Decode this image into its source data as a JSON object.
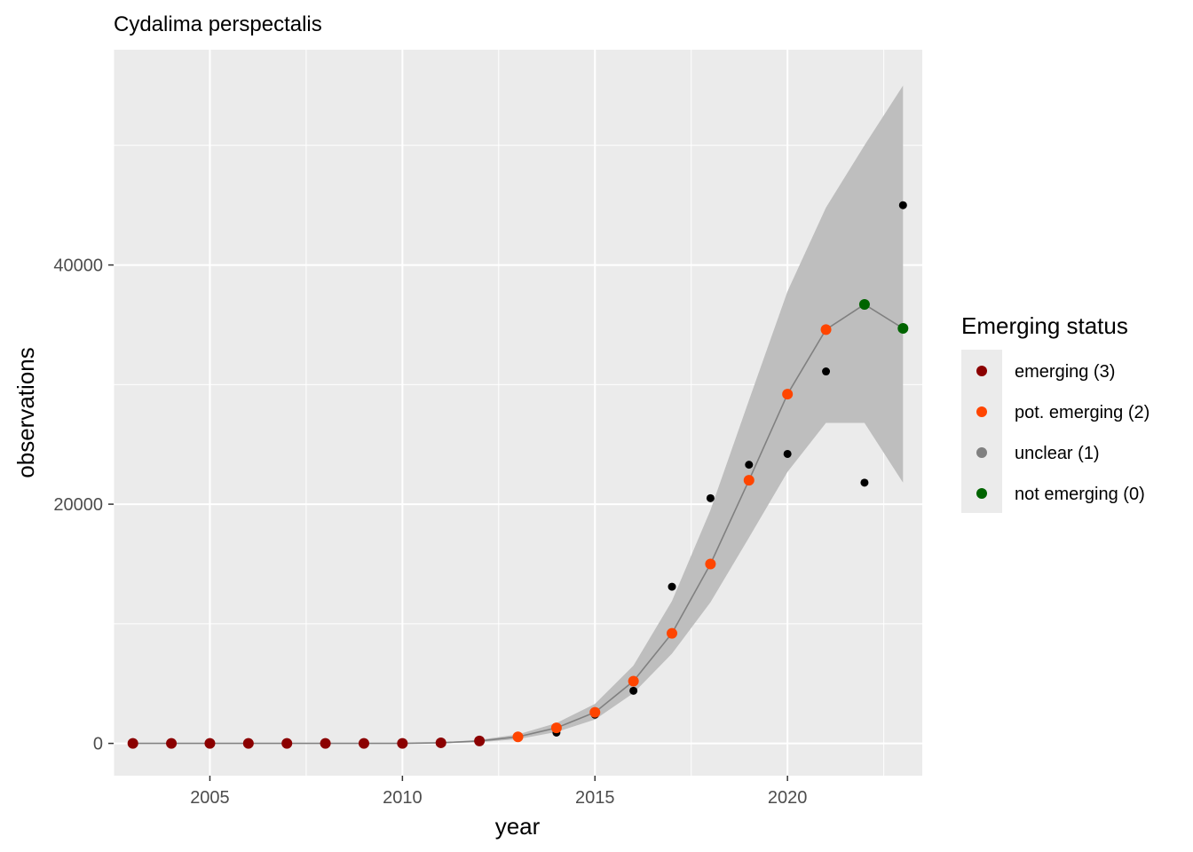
{
  "chart_data": {
    "type": "scatter",
    "title": "Cydalima perspectalis",
    "xlabel": "year",
    "ylabel": "observations",
    "xlim": [
      2002.5,
      2023.5
    ],
    "ylim": [
      -2700,
      58000
    ],
    "x_ticks": [
      2005,
      2010,
      2015,
      2020
    ],
    "x_tick_labels": [
      "2005",
      "2010",
      "2015",
      "2020"
    ],
    "y_ticks": [
      0,
      20000,
      40000
    ],
    "y_tick_labels": [
      "0",
      "20000",
      "40000"
    ],
    "grid": true,
    "legend": {
      "title": "Emerging status",
      "placement": "right",
      "entries": [
        {
          "label": "emerging (3)",
          "color": "#8B0000"
        },
        {
          "label": "pot. emerging (2)",
          "color": "#FF4500"
        },
        {
          "label": "unclear (1)",
          "color": "#808080"
        },
        {
          "label": "not emerging (0)",
          "color": "#006400"
        }
      ]
    },
    "observed": {
      "color": "#000000",
      "x": [
        2003,
        2004,
        2005,
        2006,
        2007,
        2008,
        2009,
        2010,
        2011,
        2012,
        2013,
        2014,
        2015,
        2016,
        2017,
        2018,
        2019,
        2020,
        2021,
        2022,
        2023
      ],
      "y": [
        0,
        0,
        0,
        0,
        0,
        0,
        0,
        0,
        50,
        250,
        500,
        900,
        2400,
        4400,
        13100,
        20500,
        23300,
        24200,
        31100,
        21800,
        45000
      ]
    },
    "fitted": {
      "x": [
        2003,
        2004,
        2005,
        2006,
        2007,
        2008,
        2009,
        2010,
        2011,
        2012,
        2013,
        2014,
        2015,
        2016,
        2017,
        2018,
        2019,
        2020,
        2021,
        2022,
        2023
      ],
      "y": [
        0,
        0,
        0,
        0,
        0,
        0,
        0,
        0,
        50,
        200,
        550,
        1300,
        2600,
        5200,
        9200,
        15000,
        22000,
        29200,
        34600,
        36700,
        34700
      ],
      "status": [
        "emerging (3)",
        "emerging (3)",
        "emerging (3)",
        "emerging (3)",
        "emerging (3)",
        "emerging (3)",
        "emerging (3)",
        "emerging (3)",
        "emerging (3)",
        "emerging (3)",
        "pot. emerging (2)",
        "pot. emerging (2)",
        "pot. emerging (2)",
        "pot. emerging (2)",
        "pot. emerging (2)",
        "pot. emerging (2)",
        "pot. emerging (2)",
        "pot. emerging (2)",
        "pot. emerging (2)",
        "not emerging (0)",
        "not emerging (0)"
      ],
      "lower": [
        0,
        0,
        0,
        0,
        0,
        0,
        0,
        0,
        0,
        100,
        350,
        950,
        2000,
        4200,
        7500,
        11800,
        17200,
        22700,
        26800,
        26800,
        21800
      ],
      "upper": [
        0,
        0,
        0,
        0,
        0,
        0,
        0,
        0,
        100,
        300,
        750,
        1700,
        3300,
        6500,
        11900,
        19500,
        28700,
        37800,
        44800,
        50000,
        55000
      ]
    }
  }
}
